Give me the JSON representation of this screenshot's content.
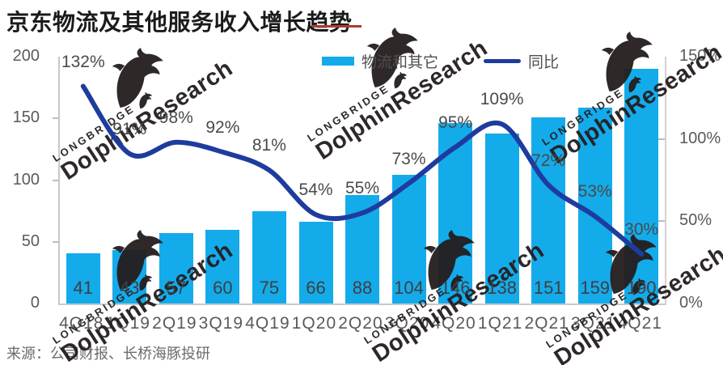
{
  "title": "京东物流及其他服务收入增长趋势",
  "source": "来源：公司财报、长桥海豚投研",
  "legend": [
    {
      "label": "物流和其它",
      "type": "bar"
    },
    {
      "label": "同比",
      "type": "line"
    }
  ],
  "watermark": {
    "brand": "LONGBRIDGE",
    "name": "DolphinResearch"
  },
  "colors": {
    "bar": "#14abeb",
    "line": "#1e3c9e",
    "title": "#1b1b1b",
    "red_mark": "#ae3b32",
    "axis_text": "#5a5a5a",
    "value_text": "#3f3f3f",
    "pct_text": "#4a4a4a",
    "source_text": "#6b6b6b",
    "watermark": "#241d1d"
  },
  "chart_data": {
    "type": "bar+line",
    "title": "京东物流及其他服务收入增长趋势",
    "categories": [
      "4Q18",
      "1Q19",
      "2Q19",
      "3Q19",
      "4Q19",
      "1Q20",
      "2Q20",
      "3Q20",
      "4Q20",
      "1Q21",
      "2Q21",
      "3Q21",
      "4Q21"
    ],
    "series": [
      {
        "name": "物流和其它",
        "type": "bar",
        "axis": "left",
        "values": [
          41,
          43,
          57,
          60,
          75,
          66,
          88,
          104,
          146,
          138,
          151,
          159,
          190
        ]
      },
      {
        "name": "同比",
        "type": "line",
        "axis": "right",
        "unit": "%",
        "values": [
          132,
          91,
          98,
          92,
          81,
          54,
          55,
          73,
          95,
          109,
          72,
          53,
          30
        ]
      }
    ],
    "left_axis": {
      "range": [
        0,
        200
      ],
      "tick_values": [
        0,
        50,
        100,
        150,
        200
      ],
      "tick_labels": [
        "0",
        "50",
        "100",
        "150",
        "200"
      ]
    },
    "right_axis": {
      "range": [
        0,
        150
      ],
      "tick_values": [
        0,
        50,
        100,
        150
      ],
      "tick_labels": [
        "0%",
        "50%",
        "100%",
        "150%"
      ]
    },
    "legend_position": "top-center",
    "grid": false
  }
}
